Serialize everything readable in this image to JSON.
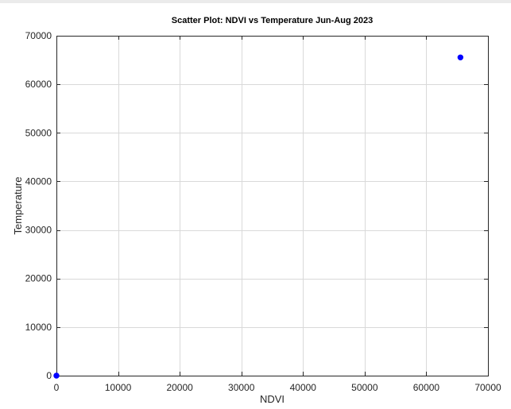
{
  "chart_data": {
    "type": "scatter",
    "title": "Scatter Plot: NDVI vs Temperature Jun-Aug 2023",
    "xlabel": "NDVI",
    "ylabel": "Temperature",
    "xlim": [
      0,
      70000
    ],
    "ylim": [
      0,
      70000
    ],
    "x_ticks": [
      0,
      10000,
      20000,
      30000,
      40000,
      50000,
      60000,
      70000
    ],
    "y_ticks": [
      0,
      10000,
      20000,
      30000,
      40000,
      50000,
      60000,
      70000
    ],
    "grid": true,
    "marker_color": "#0000ff",
    "points": [
      {
        "x": 0,
        "y": 0
      },
      {
        "x": 65535,
        "y": 65535
      }
    ]
  }
}
